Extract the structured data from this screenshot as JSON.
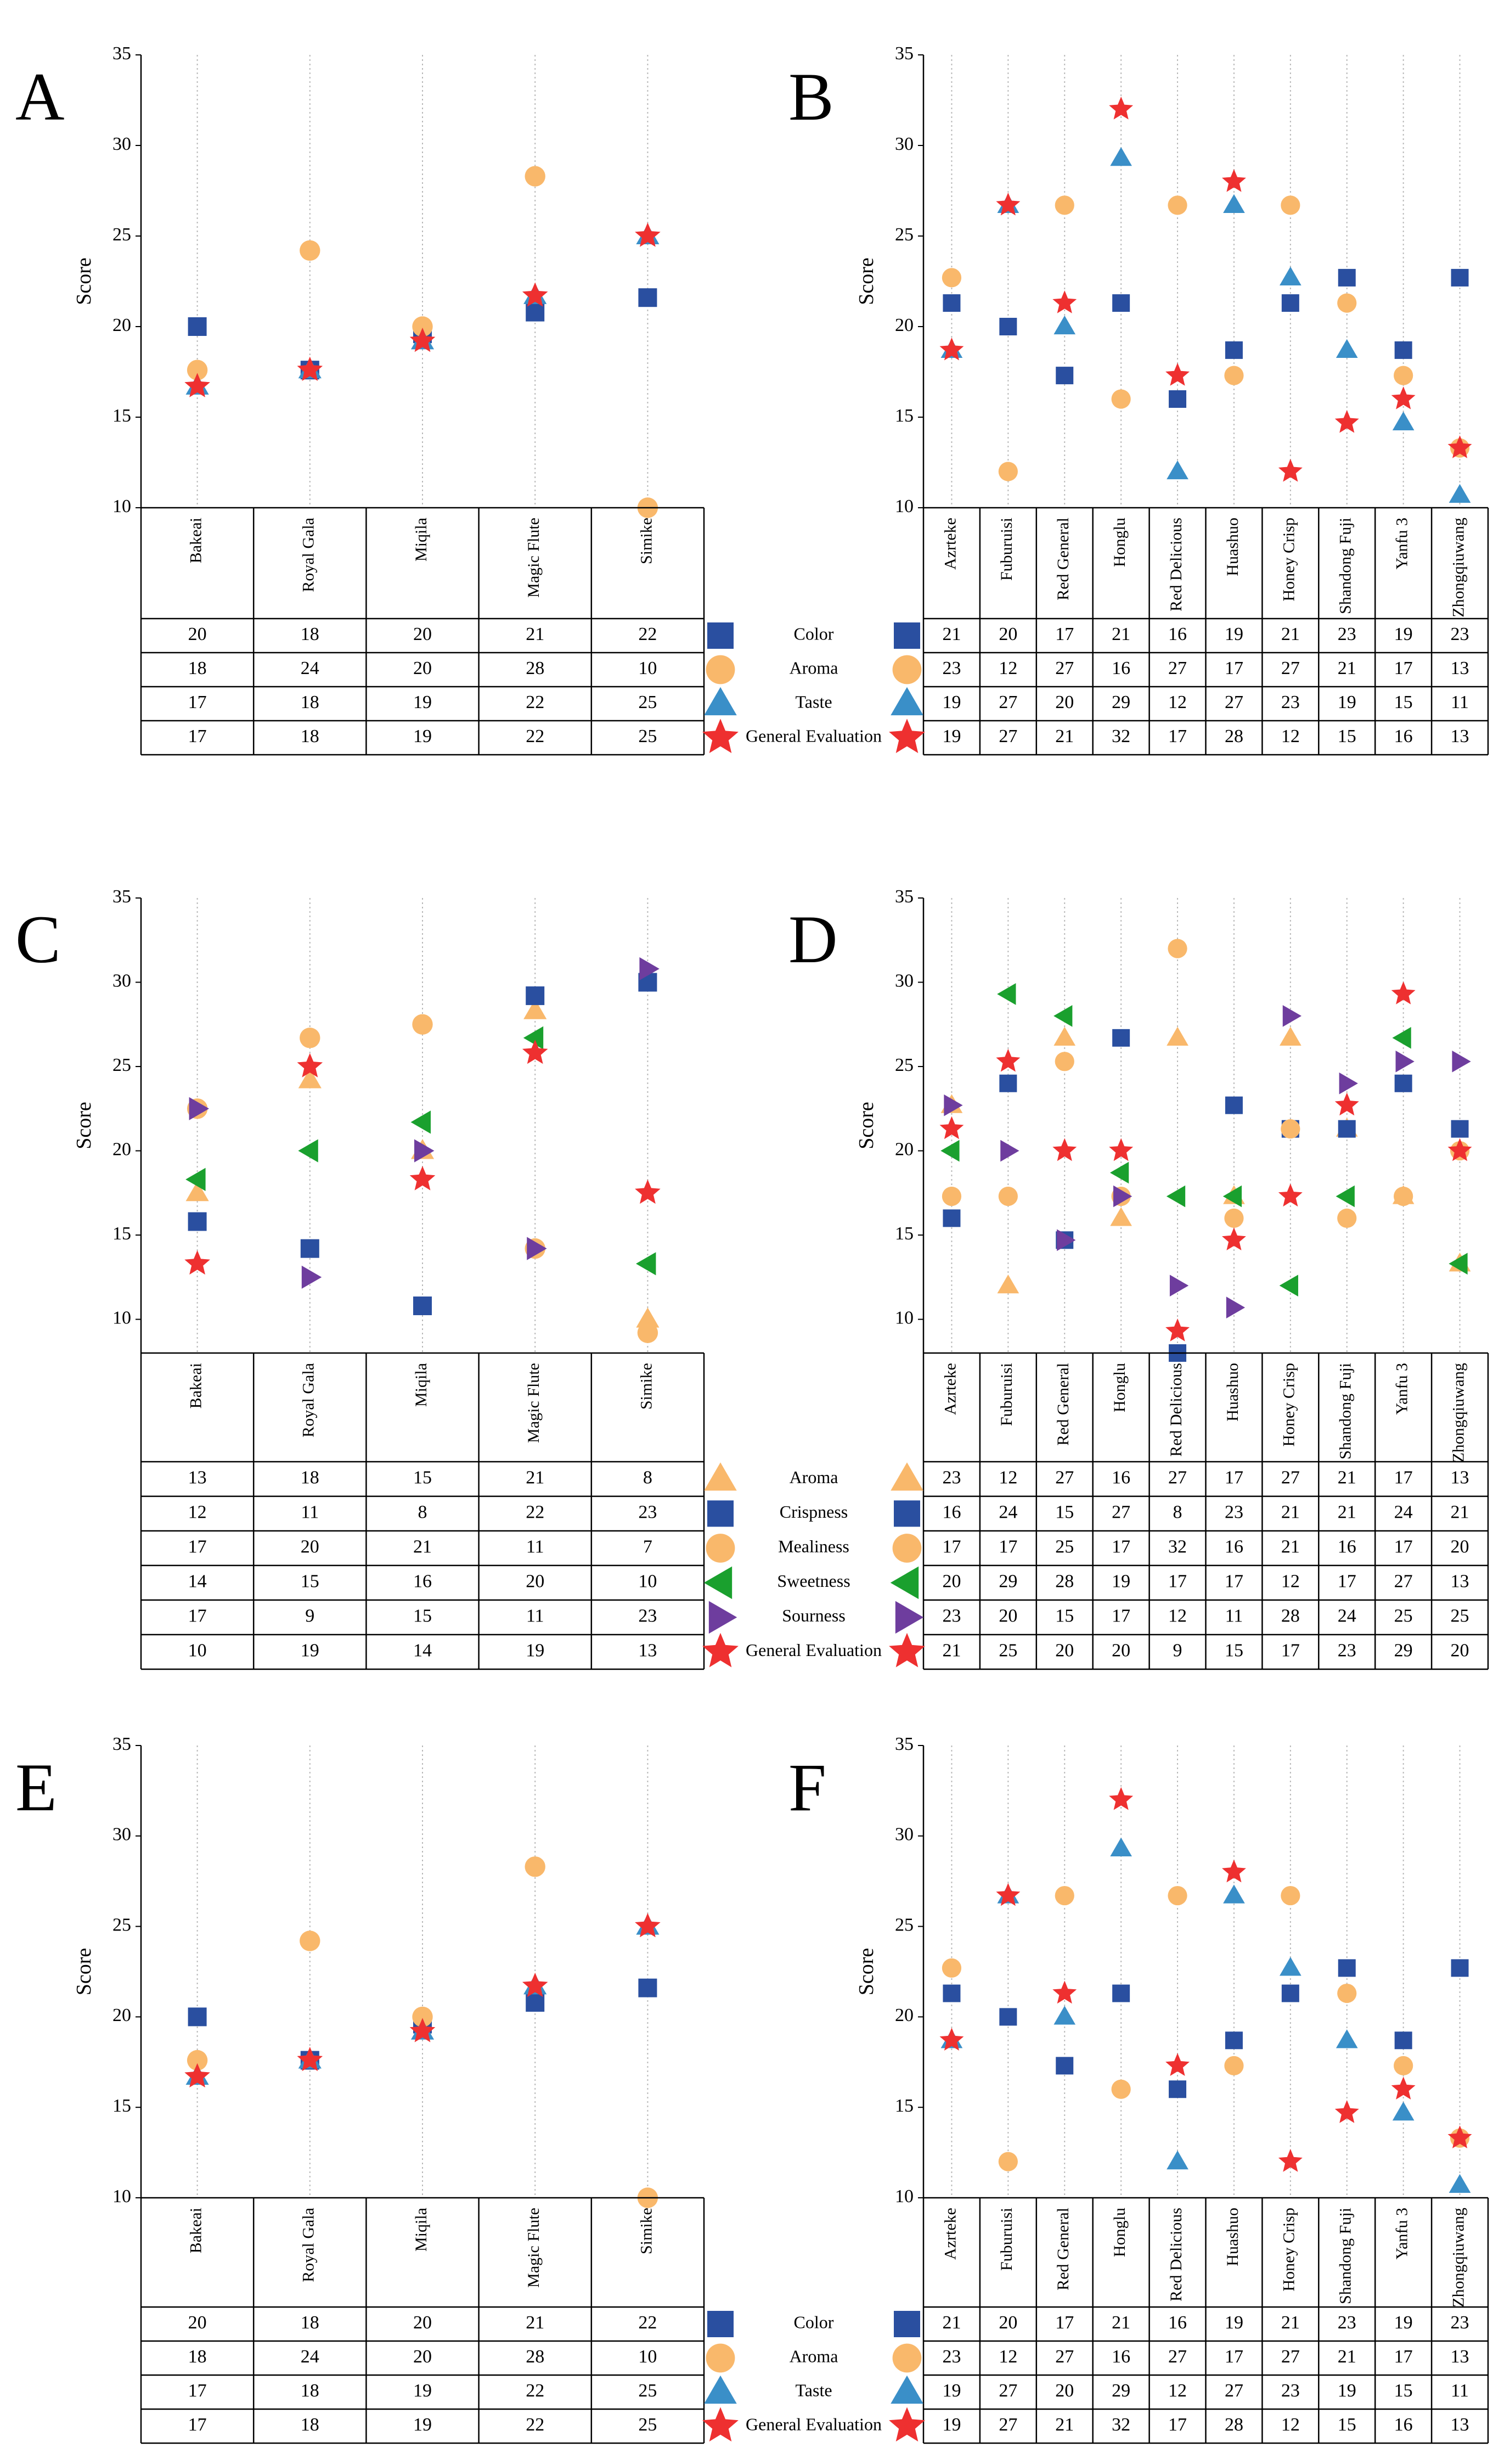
{
  "colors": {
    "Color": "#2a4fa0",
    "Aroma": "#f9b86b",
    "Taste": "#3a8fc8",
    "General Evaluation": "#ee3030",
    "Crispness": "#2a4fa0",
    "Mealiness": "#f9b86b",
    "Sweetness": "#1aa02e",
    "Sourness": "#6e3d9e",
    "grid": "#b8b8b8"
  },
  "chart_data": [
    {
      "type": "scatter",
      "panel": "A",
      "ylabel": "Score",
      "ylim": [
        10,
        35
      ],
      "yticks": [
        "35",
        "30",
        "25",
        "20",
        "15",
        "10"
      ],
      "categories": [
        "Bakeai",
        "Royal Gala",
        "Miqila",
        "Magic Flute",
        "Simike"
      ],
      "series": [
        {
          "name": "Color",
          "marker": "square",
          "values": [
            20,
            17.6,
            19.6,
            20.8,
            21.6
          ]
        },
        {
          "name": "Aroma",
          "marker": "circle",
          "values": [
            17.6,
            24.2,
            20,
            28.3,
            10
          ]
        },
        {
          "name": "Taste",
          "marker": "triangle-up",
          "values": [
            16.7,
            17.6,
            19.2,
            21.7,
            25
          ]
        },
        {
          "name": "General Evaluation",
          "marker": "star",
          "values": [
            16.7,
            17.6,
            19.2,
            21.7,
            25
          ]
        }
      ],
      "table": {
        "left": [
          [
            "20",
            "18",
            "20",
            "21",
            "22"
          ],
          [
            "18",
            "24",
            "20",
            "28",
            "10"
          ],
          [
            "17",
            "18",
            "19",
            "22",
            "25"
          ],
          [
            "17",
            "18",
            "19",
            "22",
            "25"
          ]
        ],
        "legend": [
          "Color",
          "Aroma",
          "Taste",
          "General Evaluation"
        ],
        "right": [
          [
            "21",
            "20",
            "17",
            "21",
            "16",
            "19",
            "21",
            "23",
            "19",
            "23"
          ],
          [
            "23",
            "12",
            "27",
            "16",
            "27",
            "17",
            "27",
            "21",
            "17",
            "13"
          ],
          [
            "19",
            "27",
            "20",
            "29",
            "12",
            "27",
            "23",
            "19",
            "15",
            "11"
          ],
          [
            "19",
            "27",
            "21",
            "32",
            "17",
            "28",
            "12",
            "15",
            "16",
            "13"
          ]
        ]
      }
    },
    {
      "type": "scatter",
      "panel": "B",
      "ylabel": "Score",
      "ylim": [
        10,
        35
      ],
      "yticks": [
        "35",
        "30",
        "25",
        "20",
        "15",
        "10"
      ],
      "categories": [
        "Azrteke",
        "Fuburuisi",
        "Red General",
        "Honglu",
        "Red Delicious",
        "Huashuo",
        "Honey Crisp",
        "Shandong Fuji",
        "Yanfu 3",
        "Zhongqiuwang"
      ],
      "series": [
        {
          "name": "Color",
          "marker": "square",
          "values": [
            21.3,
            20,
            17.3,
            21.3,
            16,
            18.7,
            21.3,
            22.7,
            18.7,
            22.7
          ]
        },
        {
          "name": "Aroma",
          "marker": "circle",
          "values": [
            22.7,
            12,
            26.7,
            16,
            26.7,
            17.3,
            26.7,
            21.3,
            17.3,
            13.3
          ]
        },
        {
          "name": "Taste",
          "marker": "triangle-up",
          "values": [
            18.7,
            26.7,
            20,
            29.3,
            12,
            26.7,
            22.7,
            18.7,
            14.7,
            10.7
          ]
        },
        {
          "name": "General Evaluation",
          "marker": "star",
          "values": [
            18.7,
            26.7,
            21.3,
            32,
            17.3,
            28,
            12,
            14.7,
            16,
            13.3
          ]
        }
      ]
    },
    {
      "type": "scatter",
      "panel": "C",
      "ylabel": "Score",
      "ylim": [
        8,
        35
      ],
      "yticks": [
        "35",
        "30",
        "25",
        "20",
        "15",
        "10"
      ],
      "categories": [
        "Bakeai",
        "Royal Gala",
        "Miqila",
        "Magic Flute",
        "Simike"
      ],
      "series": [
        {
          "name": "Aroma",
          "marker": "triangle-up",
          "values": [
            17.5,
            24.2,
            20,
            28.3,
            10
          ]
        },
        {
          "name": "Crispness",
          "marker": "square",
          "values": [
            15.8,
            14.2,
            10.8,
            29.2,
            30
          ]
        },
        {
          "name": "Mealiness",
          "marker": "circle",
          "values": [
            22.5,
            26.7,
            27.5,
            14.2,
            9.2
          ]
        },
        {
          "name": "Sweetness",
          "marker": "triangle-left",
          "values": [
            18.3,
            20,
            21.7,
            26.7,
            13.3
          ]
        },
        {
          "name": "Sourness",
          "marker": "triangle-right",
          "values": [
            22.5,
            12.5,
            20,
            14.2,
            30.8
          ]
        },
        {
          "name": "General Evaluation",
          "marker": "star",
          "values": [
            13.3,
            25,
            18.3,
            25.8,
            17.5
          ]
        }
      ],
      "table": {
        "left": [
          [
            "13",
            "18",
            "15",
            "21",
            "8"
          ],
          [
            "12",
            "11",
            "8",
            "22",
            "23"
          ],
          [
            "17",
            "20",
            "21",
            "11",
            "7"
          ],
          [
            "14",
            "15",
            "16",
            "20",
            "10"
          ],
          [
            "17",
            "9",
            "15",
            "11",
            "23"
          ],
          [
            "10",
            "19",
            "14",
            "19",
            "13"
          ]
        ],
        "legend": [
          "Aroma",
          "Crispness",
          "Mealiness",
          "Sweetness",
          "Sourness",
          "General Evaluation"
        ],
        "right": [
          [
            "23",
            "12",
            "27",
            "16",
            "27",
            "17",
            "27",
            "21",
            "17",
            "13"
          ],
          [
            "16",
            "24",
            "15",
            "27",
            "8",
            "23",
            "21",
            "21",
            "24",
            "21"
          ],
          [
            "17",
            "17",
            "25",
            "17",
            "32",
            "16",
            "21",
            "16",
            "17",
            "20"
          ],
          [
            "20",
            "29",
            "28",
            "19",
            "17",
            "17",
            "12",
            "17",
            "27",
            "13"
          ],
          [
            "23",
            "20",
            "15",
            "17",
            "12",
            "11",
            "28",
            "24",
            "25",
            "25"
          ],
          [
            "21",
            "25",
            "20",
            "20",
            "9",
            "15",
            "17",
            "23",
            "29",
            "20"
          ]
        ]
      }
    },
    {
      "type": "scatter",
      "panel": "D",
      "ylabel": "Score",
      "ylim": [
        8,
        35
      ],
      "yticks": [
        "35",
        "30",
        "25",
        "20",
        "15",
        "10"
      ],
      "categories": [
        "Azrteke",
        "Fuburuisi",
        "Red General",
        "Honglu",
        "Red Delicious",
        "Huashuo",
        "Honey Crisp",
        "Shandong Fuji",
        "Yanfu 3",
        "Zhongqiuwang"
      ],
      "series": [
        {
          "name": "Aroma",
          "marker": "triangle-up",
          "values": [
            22.7,
            12,
            26.7,
            16,
            26.7,
            17.3,
            26.7,
            21.3,
            17.3,
            13.3
          ]
        },
        {
          "name": "Crispness",
          "marker": "square",
          "values": [
            16,
            24,
            14.7,
            26.7,
            8,
            22.7,
            21.3,
            21.3,
            24,
            21.3
          ]
        },
        {
          "name": "Mealiness",
          "marker": "circle",
          "values": [
            17.3,
            17.3,
            25.3,
            17.3,
            32,
            16,
            21.3,
            16,
            17.3,
            20
          ]
        },
        {
          "name": "Sweetness",
          "marker": "triangle-left",
          "values": [
            20,
            29.3,
            28,
            18.7,
            17.3,
            17.3,
            12,
            17.3,
            26.7,
            13.3
          ]
        },
        {
          "name": "Sourness",
          "marker": "triangle-right",
          "values": [
            22.7,
            20,
            14.7,
            17.3,
            12,
            10.7,
            28,
            24,
            25.3,
            25.3
          ]
        },
        {
          "name": "General Evaluation",
          "marker": "star",
          "values": [
            21.3,
            25.3,
            20,
            20,
            9.3,
            14.7,
            17.3,
            22.7,
            29.3,
            20
          ]
        }
      ]
    },
    {
      "type": "scatter",
      "panel": "E",
      "ylabel": "Score",
      "ylim": [
        10,
        35
      ],
      "yticks": [
        "35",
        "30",
        "25",
        "20",
        "15",
        "10"
      ],
      "categories": [
        "Bakeai",
        "Royal Gala",
        "Miqila",
        "Magic Flute",
        "Simike"
      ],
      "series": [
        {
          "name": "Color",
          "marker": "square",
          "values": [
            20,
            17.6,
            19.6,
            20.8,
            21.6
          ]
        },
        {
          "name": "Aroma",
          "marker": "circle",
          "values": [
            17.6,
            24.2,
            20,
            28.3,
            10
          ]
        },
        {
          "name": "Taste",
          "marker": "triangle-up",
          "values": [
            16.7,
            17.6,
            19.2,
            21.7,
            25
          ]
        },
        {
          "name": "General Evaluation",
          "marker": "star",
          "values": [
            16.7,
            17.6,
            19.2,
            21.7,
            25
          ]
        }
      ],
      "table": {
        "left": [
          [
            "20",
            "18",
            "20",
            "21",
            "22"
          ],
          [
            "18",
            "24",
            "20",
            "28",
            "10"
          ],
          [
            "17",
            "18",
            "19",
            "22",
            "25"
          ],
          [
            "17",
            "18",
            "19",
            "22",
            "25"
          ]
        ],
        "legend": [
          "Color",
          "Aroma",
          "Taste",
          "General Evaluation"
        ],
        "right": [
          [
            "21",
            "20",
            "17",
            "21",
            "16",
            "19",
            "21",
            "23",
            "19",
            "23"
          ],
          [
            "23",
            "12",
            "27",
            "16",
            "27",
            "17",
            "27",
            "21",
            "17",
            "13"
          ],
          [
            "19",
            "27",
            "20",
            "29",
            "12",
            "27",
            "23",
            "19",
            "15",
            "11"
          ],
          [
            "19",
            "27",
            "21",
            "32",
            "17",
            "28",
            "12",
            "15",
            "16",
            "13"
          ]
        ]
      }
    },
    {
      "type": "scatter",
      "panel": "F",
      "ylabel": "Score",
      "ylim": [
        10,
        35
      ],
      "yticks": [
        "35",
        "30",
        "25",
        "20",
        "15",
        "10"
      ],
      "categories": [
        "Azrteke",
        "Fuburuisi",
        "Red General",
        "Honglu",
        "Red Delicious",
        "Huashuo",
        "Honey Crisp",
        "Shandong Fuji",
        "Yanfu 3",
        "Zhongqiuwang"
      ],
      "series": [
        {
          "name": "Color",
          "marker": "square",
          "values": [
            21.3,
            20,
            17.3,
            21.3,
            16,
            18.7,
            21.3,
            22.7,
            18.7,
            22.7
          ]
        },
        {
          "name": "Aroma",
          "marker": "circle",
          "values": [
            22.7,
            12,
            26.7,
            16,
            26.7,
            17.3,
            26.7,
            21.3,
            17.3,
            13.3
          ]
        },
        {
          "name": "Taste",
          "marker": "triangle-up",
          "values": [
            18.7,
            26.7,
            20,
            29.3,
            12,
            26.7,
            22.7,
            18.7,
            14.7,
            10.7
          ]
        },
        {
          "name": "General Evaluation",
          "marker": "star",
          "values": [
            18.7,
            26.7,
            21.3,
            32,
            17.3,
            28,
            12,
            14.7,
            16,
            13.3
          ]
        }
      ]
    }
  ]
}
